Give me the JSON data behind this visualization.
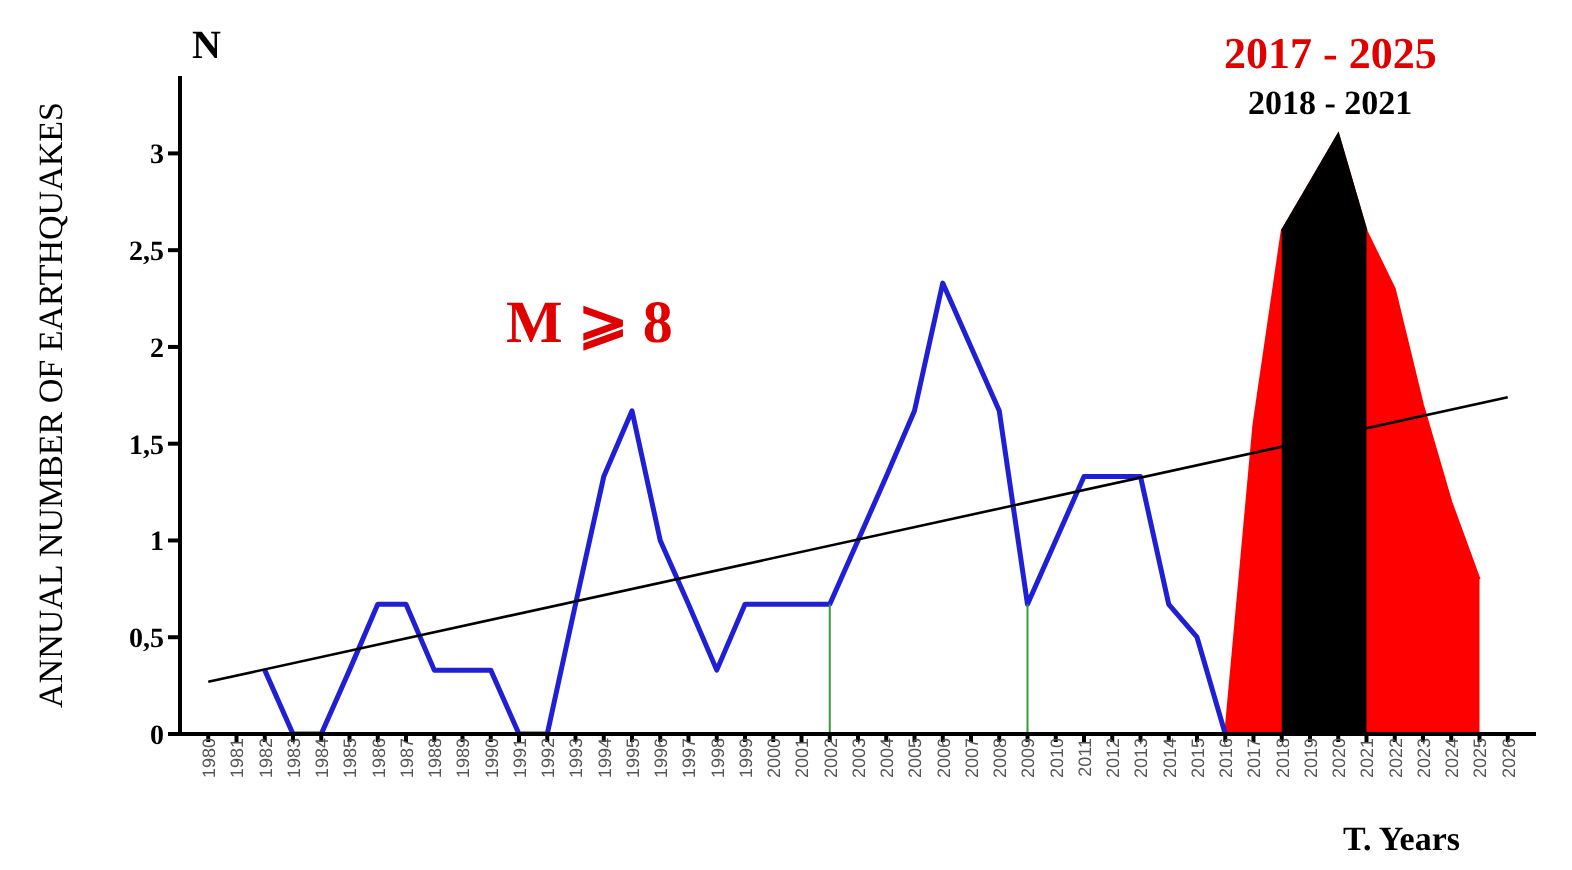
{
  "chart_data": {
    "type": "line",
    "ylabel": "ANNUAL NUMBER OF EARTHQUAKES",
    "xlabel": "T. Years",
    "annotations": [
      "N",
      "M ⩾ 8",
      "2017 - 2025",
      "2018 - 2021"
    ],
    "categories": [
      "1980",
      "1981",
      "1982",
      "1983",
      "1984",
      "1985",
      "1986",
      "1987",
      "1988",
      "1989",
      "1990",
      "1991",
      "1992",
      "1993",
      "1994",
      "1995",
      "1996",
      "1997",
      "1998",
      "1999",
      "2000",
      "2001",
      "2002",
      "2003",
      "2004",
      "2005",
      "2006",
      "2007",
      "2008",
      "2009",
      "2010",
      "2011",
      "2012",
      "2013",
      "2014",
      "2015",
      "2016",
      "2017",
      "2018",
      "2019",
      "2020",
      "2021",
      "2022",
      "2023",
      "2024",
      "2025",
      "2026"
    ],
    "series": [
      {
        "type": "area",
        "color": "#ff0000",
        "values": [
          null,
          null,
          null,
          null,
          null,
          null,
          null,
          null,
          null,
          null,
          null,
          null,
          null,
          null,
          null,
          null,
          null,
          null,
          null,
          null,
          null,
          null,
          null,
          null,
          null,
          null,
          null,
          null,
          null,
          null,
          null,
          null,
          null,
          null,
          null,
          null,
          0,
          1.6,
          2.6,
          2.85,
          3.1,
          2.6,
          2.3,
          1.7,
          1.2,
          0.8,
          null
        ]
      },
      {
        "type": "area",
        "color": "#000000",
        "values": [
          null,
          null,
          null,
          null,
          null,
          null,
          null,
          null,
          null,
          null,
          null,
          null,
          null,
          null,
          null,
          null,
          null,
          null,
          null,
          null,
          null,
          null,
          null,
          null,
          null,
          null,
          null,
          null,
          null,
          null,
          null,
          null,
          null,
          null,
          null,
          null,
          null,
          null,
          2.6,
          2.85,
          3.1,
          2.6,
          null,
          null,
          null,
          null,
          null
        ]
      },
      {
        "color": "#1f1fd6",
        "values": [
          null,
          null,
          0.33,
          0,
          0,
          0.33,
          0.67,
          0.67,
          0.33,
          0.33,
          0.33,
          0,
          0,
          0.67,
          1.33,
          1.67,
          1,
          0.67,
          0.33,
          0.67,
          0.67,
          0.67,
          0.67,
          1,
          1.33,
          1.67,
          2.33,
          2,
          1.67,
          0.67,
          1,
          1.33,
          1.33,
          1.33,
          0.67,
          0.5,
          0,
          null,
          null,
          null,
          null,
          null,
          null,
          null,
          null,
          null,
          null
        ]
      },
      {
        "color": "#000000",
        "values": [
          0.27,
          null,
          null,
          null,
          null,
          null,
          null,
          null,
          null,
          null,
          null,
          null,
          null,
          null,
          null,
          null,
          null,
          null,
          null,
          null,
          null,
          null,
          null,
          null,
          null,
          null,
          null,
          null,
          null,
          null,
          null,
          null,
          null,
          null,
          null,
          null,
          null,
          null,
          null,
          null,
          null,
          null,
          null,
          null,
          null,
          null,
          1.74
        ]
      }
    ],
    "ref_lines": [
      {
        "axis": "x",
        "value": "2002",
        "color": "#3a9a3a"
      },
      {
        "axis": "x",
        "value": "2009",
        "color": "#3a9a3a"
      }
    ],
    "ylim": [
      0,
      3.4
    ],
    "yticks": [
      0,
      {
        "value": 0.5,
        "label": "0,5"
      },
      1,
      {
        "value": 1.5,
        "label": "1,5"
      },
      2,
      {
        "value": 2.5,
        "label": "2,5"
      },
      3
    ],
    "grid": false,
    "legend": false,
    "marker": "none",
    "line_style": "solid"
  }
}
